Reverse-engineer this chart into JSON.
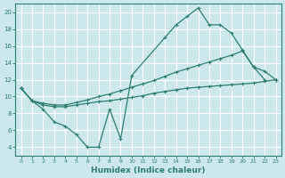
{
  "xlabel": "Humidex (Indice chaleur)",
  "xlim": [
    -0.5,
    23.5
  ],
  "ylim": [
    3,
    21
  ],
  "yticks": [
    4,
    6,
    8,
    10,
    12,
    14,
    16,
    18,
    20
  ],
  "xticks": [
    0,
    1,
    2,
    3,
    4,
    5,
    6,
    7,
    8,
    9,
    10,
    11,
    12,
    13,
    14,
    15,
    16,
    17,
    18,
    19,
    20,
    21,
    22,
    23
  ],
  "bg_color": "#cce8ec",
  "grid_color": "#ffffff",
  "line_color": "#2e7d6e",
  "line1_x": [
    0,
    1,
    2,
    3,
    4,
    5,
    6,
    7,
    8,
    9,
    10,
    13,
    14,
    15,
    16,
    17,
    18,
    19,
    20,
    21,
    22
  ],
  "line1_y": [
    11,
    9.5,
    8.5,
    7.0,
    6.5,
    5.5,
    4.0,
    4.0,
    8.5,
    5.0,
    12.5,
    17.0,
    18.5,
    19.5,
    20.5,
    18.5,
    18.5,
    17.5,
    15.5,
    13.5,
    12.0
  ],
  "line2_x": [
    0,
    1,
    2,
    3,
    4,
    5,
    6,
    7,
    8,
    9,
    10,
    11,
    12,
    13,
    14,
    15,
    16,
    17,
    18,
    19,
    20,
    21,
    22,
    23
  ],
  "line2_y": [
    11.0,
    9.5,
    9.0,
    8.8,
    8.8,
    9.0,
    9.2,
    9.4,
    9.5,
    9.7,
    9.9,
    10.1,
    10.4,
    10.6,
    10.8,
    11.0,
    11.1,
    11.2,
    11.3,
    11.4,
    11.5,
    11.6,
    11.8,
    12.0
  ],
  "line3_x": [
    0,
    1,
    2,
    3,
    4,
    5,
    6,
    7,
    8,
    9,
    10,
    11,
    12,
    13,
    14,
    15,
    16,
    17,
    18,
    19,
    20,
    21,
    22,
    23
  ],
  "line3_y": [
    11.0,
    9.5,
    9.2,
    9.0,
    9.0,
    9.3,
    9.6,
    10.0,
    10.3,
    10.7,
    11.1,
    11.5,
    11.9,
    12.4,
    12.9,
    13.3,
    13.7,
    14.1,
    14.5,
    14.9,
    15.4,
    13.5,
    13.0,
    12.0
  ]
}
